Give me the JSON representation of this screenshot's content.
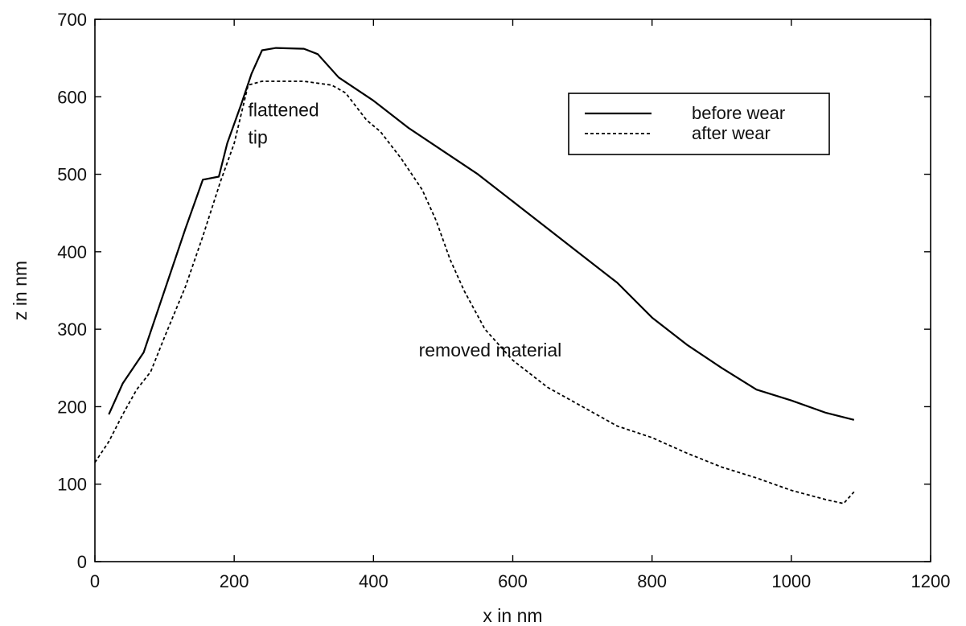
{
  "chart_data": {
    "type": "line",
    "xlabel": "x in nm",
    "ylabel": "z in nm",
    "xlim": [
      0,
      1200
    ],
    "ylim": [
      0,
      700
    ],
    "xticks": [
      0,
      200,
      400,
      600,
      800,
      1000,
      1200
    ],
    "yticks": [
      0,
      100,
      200,
      300,
      400,
      500,
      600,
      700
    ],
    "xtick_labels": [
      "0",
      "200",
      "400",
      "600",
      "800",
      "1000",
      "1200"
    ],
    "ytick_labels": [
      "0",
      "100",
      "200",
      "300",
      "400",
      "500",
      "600",
      "700"
    ],
    "grid": false,
    "legend_position": "top-right",
    "series": [
      {
        "name": "before wear",
        "style": "solid",
        "color": "#000000",
        "points": [
          [
            20,
            190
          ],
          [
            40,
            230
          ],
          [
            70,
            270
          ],
          [
            100,
            350
          ],
          [
            130,
            430
          ],
          [
            155,
            493
          ],
          [
            178,
            497
          ],
          [
            190,
            540
          ],
          [
            210,
            590
          ],
          [
            225,
            630
          ],
          [
            240,
            660
          ],
          [
            260,
            663
          ],
          [
            300,
            662
          ],
          [
            320,
            655
          ],
          [
            350,
            625
          ],
          [
            400,
            595
          ],
          [
            450,
            560
          ],
          [
            500,
            530
          ],
          [
            550,
            500
          ],
          [
            600,
            465
          ],
          [
            650,
            430
          ],
          [
            700,
            395
          ],
          [
            750,
            360
          ],
          [
            800,
            315
          ],
          [
            850,
            280
          ],
          [
            900,
            250
          ],
          [
            950,
            222
          ],
          [
            1000,
            208
          ],
          [
            1050,
            192
          ],
          [
            1090,
            183
          ]
        ]
      },
      {
        "name": "after wear",
        "style": "dashed",
        "color": "#000000",
        "points": [
          [
            0,
            128
          ],
          [
            20,
            155
          ],
          [
            40,
            190
          ],
          [
            60,
            222
          ],
          [
            80,
            245
          ],
          [
            100,
            290
          ],
          [
            130,
            355
          ],
          [
            155,
            420
          ],
          [
            180,
            490
          ],
          [
            200,
            540
          ],
          [
            220,
            615
          ],
          [
            240,
            620
          ],
          [
            300,
            620
          ],
          [
            340,
            615
          ],
          [
            360,
            605
          ],
          [
            390,
            570
          ],
          [
            410,
            555
          ],
          [
            440,
            520
          ],
          [
            470,
            480
          ],
          [
            490,
            440
          ],
          [
            510,
            390
          ],
          [
            530,
            350
          ],
          [
            560,
            300
          ],
          [
            600,
            260
          ],
          [
            650,
            225
          ],
          [
            700,
            200
          ],
          [
            750,
            175
          ],
          [
            800,
            160
          ],
          [
            850,
            140
          ],
          [
            900,
            122
          ],
          [
            950,
            108
          ],
          [
            1000,
            92
          ],
          [
            1050,
            80
          ],
          [
            1075,
            75
          ],
          [
            1090,
            90
          ]
        ]
      }
    ],
    "annotations": [
      {
        "lines": [
          "flattened",
          "tip"
        ],
        "x": 220,
        "y": 575
      },
      {
        "lines": [
          "removed material"
        ],
        "x": 465,
        "y": 265
      }
    ]
  }
}
